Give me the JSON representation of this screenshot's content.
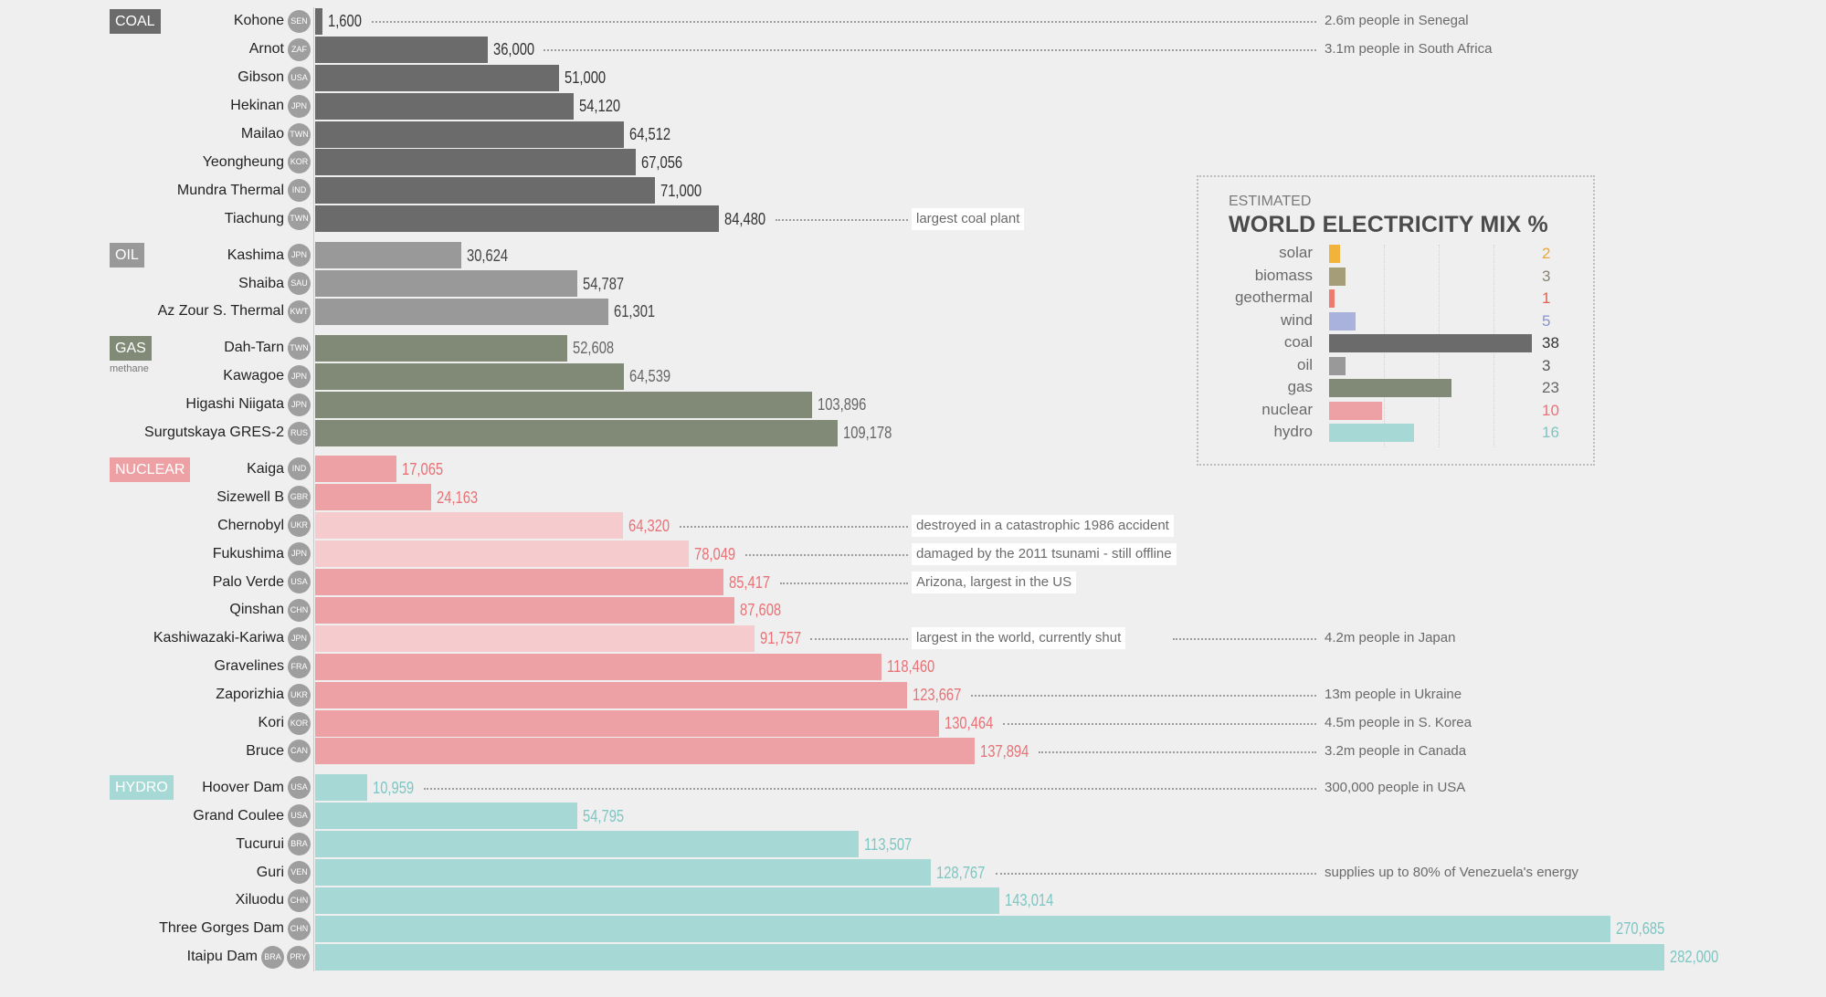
{
  "chart_data": {
    "type": "bar",
    "orientation": "horizontal",
    "xlim": [
      0,
      282000
    ],
    "groups": [
      {
        "name": "COAL",
        "color": "#6b6b6b",
        "value_color": "#333333",
        "plants": [
          {
            "name": "Kohone",
            "countries": [
              "SEN"
            ],
            "value": 1600,
            "label": "1,600",
            "note": "2.6m people in Senegal",
            "note_col": "right"
          },
          {
            "name": "Arnot",
            "countries": [
              "ZAF"
            ],
            "value": 36000,
            "label": "36,000",
            "note": "3.1m people in South Africa",
            "note_col": "right"
          },
          {
            "name": "Gibson",
            "countries": [
              "USA"
            ],
            "value": 51000,
            "label": "51,000"
          },
          {
            "name": "Hekinan",
            "countries": [
              "JPN"
            ],
            "value": 54120,
            "label": "54,120"
          },
          {
            "name": "Mailao",
            "countries": [
              "TWN"
            ],
            "value": 64512,
            "label": "64,512"
          },
          {
            "name": "Yeongheung",
            "countries": [
              "KOR"
            ],
            "value": 67056,
            "label": "67,056"
          },
          {
            "name": "Mundra Thermal",
            "countries": [
              "IND"
            ],
            "value": 71000,
            "label": "71,000"
          },
          {
            "name": "Tiachung",
            "countries": [
              "TWN"
            ],
            "value": 84480,
            "label": "84,480",
            "note": "largest coal plant",
            "note_col": "mid"
          }
        ]
      },
      {
        "name": "OIL",
        "color": "#999999",
        "value_color": "#444444",
        "plants": [
          {
            "name": "Kashima",
            "countries": [
              "JPN"
            ],
            "value": 30624,
            "label": "30,624"
          },
          {
            "name": "Shaiba",
            "countries": [
              "SAU"
            ],
            "value": 54787,
            "label": "54,787"
          },
          {
            "name": "Az Zour S. Thermal",
            "countries": [
              "KWT"
            ],
            "value": 61301,
            "label": "61,301"
          }
        ]
      },
      {
        "name": "GAS",
        "sub": "methane",
        "color": "#818a76",
        "value_color": "#666666",
        "plants": [
          {
            "name": "Dah-Tarn",
            "countries": [
              "TWN"
            ],
            "value": 52608,
            "label": "52,608"
          },
          {
            "name": "Kawagoe",
            "countries": [
              "JPN"
            ],
            "value": 64539,
            "label": "64,539"
          },
          {
            "name": "Higashi Niigata",
            "countries": [
              "JPN"
            ],
            "value": 103896,
            "label": "103,896"
          },
          {
            "name": "Surgutskaya GRES-2",
            "countries": [
              "RUS"
            ],
            "value": 109178,
            "label": "109,178"
          }
        ]
      },
      {
        "name": "NUCLEAR",
        "color": "#eea1a4",
        "value_color": "#e87277",
        "plants": [
          {
            "name": "Kaiga",
            "countries": [
              "IND"
            ],
            "value": 17065,
            "label": "17,065"
          },
          {
            "name": "Sizewell B",
            "countries": [
              "GBR"
            ],
            "value": 24163,
            "label": "24,163"
          },
          {
            "name": "Chernobyl",
            "countries": [
              "UKR"
            ],
            "value": 64320,
            "label": "64,320",
            "faded": true,
            "note": "destroyed in a catastrophic 1986 accident",
            "note_col": "mid"
          },
          {
            "name": "Fukushima",
            "countries": [
              "JPN"
            ],
            "value": 78049,
            "label": "78,049",
            "faded": true,
            "note": "damaged by the 2011 tsunami - still offline",
            "note_col": "mid"
          },
          {
            "name": "Palo Verde",
            "countries": [
              "USA"
            ],
            "value": 85417,
            "label": "85,417",
            "note": "Arizona, largest in the US",
            "note_col": "mid"
          },
          {
            "name": "Qinshan",
            "countries": [
              "CHN"
            ],
            "value": 87608,
            "label": "87,608"
          },
          {
            "name": "Kashiwazaki-Kariwa",
            "countries": [
              "JPN"
            ],
            "value": 91757,
            "label": "91,757",
            "faded": true,
            "note": "largest in the world, currently shut",
            "note_col": "mid",
            "note2": "4.2m people in Japan"
          },
          {
            "name": "Gravelines",
            "countries": [
              "FRA"
            ],
            "value": 118460,
            "label": "118,460"
          },
          {
            "name": "Zaporizhia",
            "countries": [
              "UKR"
            ],
            "value": 123667,
            "label": "123,667",
            "note": "13m people in Ukraine",
            "note_col": "right"
          },
          {
            "name": "Kori",
            "countries": [
              "KOR"
            ],
            "value": 130464,
            "label": "130,464",
            "note": "4.5m people in S. Korea",
            "note_col": "right"
          },
          {
            "name": "Bruce",
            "countries": [
              "CAN"
            ],
            "value": 137894,
            "label": "137,894",
            "note": "3.2m people in Canada",
            "note_col": "right"
          }
        ]
      },
      {
        "name": "HYDRO",
        "color": "#a6d9d6",
        "value_color": "#7ec6c3",
        "plants": [
          {
            "name": "Hoover Dam",
            "countries": [
              "USA"
            ],
            "value": 10959,
            "label": "10,959",
            "note": "300,000 people in USA",
            "note_col": "right"
          },
          {
            "name": "Grand Coulee",
            "countries": [
              "USA"
            ],
            "value": 54795,
            "label": "54,795"
          },
          {
            "name": "Tucurui",
            "countries": [
              "BRA"
            ],
            "value": 113507,
            "label": "113,507"
          },
          {
            "name": "Guri",
            "countries": [
              "VEN"
            ],
            "value": 128767,
            "label": "128,767",
            "note": "supplies up to 80% of Venezuela's energy",
            "note_col": "right"
          },
          {
            "name": "Xiluodu",
            "countries": [
              "CHN"
            ],
            "value": 143014,
            "label": "143,014"
          },
          {
            "name": "Three Gorges Dam",
            "countries": [
              "CHN"
            ],
            "value": 270685,
            "label": "270,685"
          },
          {
            "name": "Itaipu Dam",
            "countries": [
              "BRA",
              "PRY"
            ],
            "value": 282000,
            "label": "282,000"
          }
        ]
      }
    ],
    "inset": {
      "type": "bar",
      "kicker": "ESTIMATED",
      "title": "WORLD ELECTRICITY MIX %",
      "xlim": [
        0,
        38
      ],
      "items": [
        {
          "label": "solar",
          "value": 2,
          "color": "#f2b33d",
          "value_color": "#e8a73a"
        },
        {
          "label": "biomass",
          "value": 3,
          "color": "#a59d78",
          "value_color": "#8a8470"
        },
        {
          "label": "geothermal",
          "value": 1,
          "color": "#ee7b6e",
          "value_color": "#e0604f"
        },
        {
          "label": "wind",
          "value": 5,
          "color": "#a9b2dc",
          "value_color": "#8594cf"
        },
        {
          "label": "coal",
          "value": 38,
          "color": "#6b6b6b",
          "value_color": "#333333"
        },
        {
          "label": "oil",
          "value": 3,
          "color": "#999999",
          "value_color": "#555555"
        },
        {
          "label": "gas",
          "value": 23,
          "color": "#818a76",
          "value_color": "#666666"
        },
        {
          "label": "nuclear",
          "value": 10,
          "color": "#eea1a4",
          "value_color": "#e87277"
        },
        {
          "label": "hydro",
          "value": 16,
          "color": "#a6d9d6",
          "value_color": "#7ec6c3"
        }
      ]
    }
  }
}
